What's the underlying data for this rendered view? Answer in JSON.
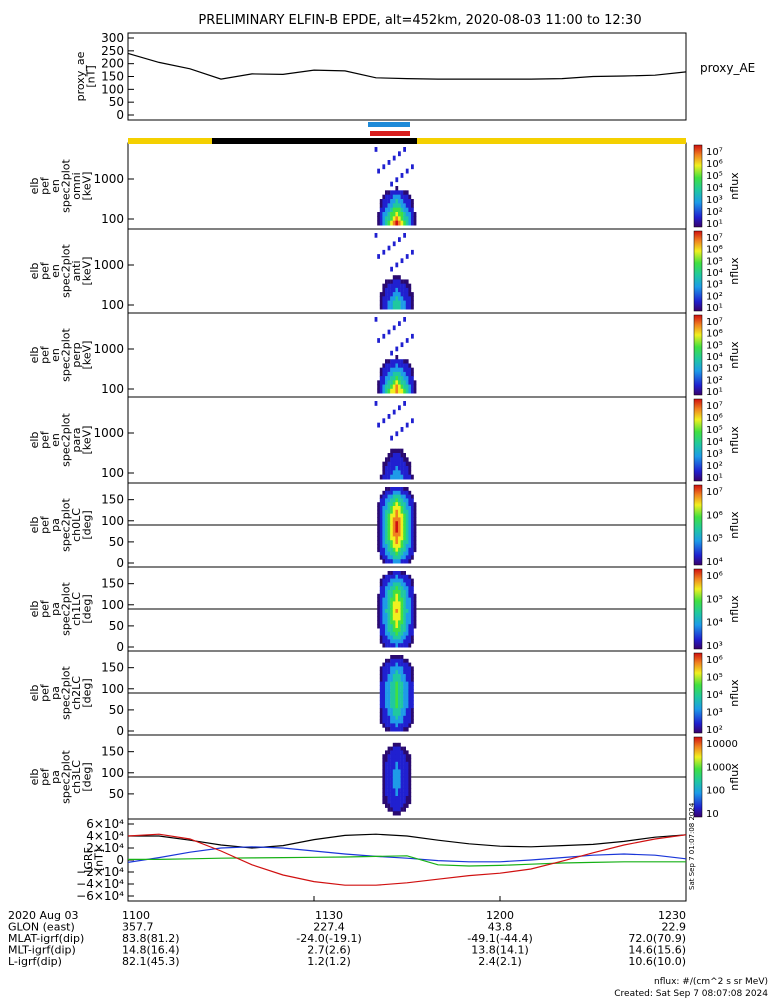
{
  "title": "PRELIMINARY ELFIN-B EPDE, alt=452km, 2020-08-03 11:00 to 12:30",
  "colors": {
    "bar_yellow": "#f4d000",
    "bar_black": "#000000",
    "ind_blue": "#1e8ad8",
    "ind_red": "#d81e1e",
    "grf_black": "#000000",
    "grf_blue": "#1a36d8",
    "grf_green": "#16b016",
    "grf_red": "#d01010"
  },
  "colorbar_ticks_text": {
    "p0": [
      "10⁷",
      "10⁶",
      "10⁵",
      "10⁴",
      "10³",
      "10²",
      "10¹"
    ],
    "p4": [
      "10⁷",
      "10⁶",
      "10⁵",
      "10⁴"
    ],
    "p5": [
      "10⁶",
      "10⁵",
      "10⁴",
      "10³"
    ],
    "p6": [
      "10⁶",
      "10⁵",
      "10⁴",
      "10³",
      "10²"
    ],
    "p7": [
      "10000",
      "1000",
      "100",
      "10"
    ]
  },
  "chart_data": {
    "type": "heatmap",
    "x_range": [
      "11:00",
      "12:30"
    ],
    "panels": [
      {
        "id": "proxy_ae",
        "type": "line",
        "label": "proxy_AE",
        "ylabel_lines": [
          "proxy_ae",
          "[nT]"
        ],
        "yticks": [
          "300",
          "250",
          "200",
          "150",
          "100",
          "50",
          "0"
        ],
        "ylim": [
          0,
          300
        ],
        "x_minutes": [
          0,
          5,
          10,
          15,
          20,
          25,
          30,
          35,
          40,
          45,
          50,
          55,
          60,
          65,
          70,
          75,
          80,
          85,
          90
        ],
        "values": [
          240,
          205,
          180,
          140,
          160,
          158,
          175,
          172,
          145,
          142,
          140,
          140,
          140,
          140,
          142,
          150,
          152,
          155,
          168
        ]
      },
      {
        "id": "en_omni",
        "ylabel_lines": [
          "elb",
          "pef",
          "en",
          "spec2plot",
          "omni",
          "[keV]"
        ],
        "yticks": [
          "1000",
          "100"
        ],
        "cbar": "p0"
      },
      {
        "id": "en_anti",
        "ylabel_lines": [
          "elb",
          "pef",
          "en",
          "spec2plot",
          "anti",
          "[keV]"
        ],
        "yticks": [
          "1000",
          "100"
        ],
        "cbar": "p0"
      },
      {
        "id": "en_perp",
        "ylabel_lines": [
          "elb",
          "pef",
          "en",
          "spec2plot",
          "perp",
          "[keV]"
        ],
        "yticks": [
          "1000",
          "100"
        ],
        "cbar": "p0"
      },
      {
        "id": "en_para",
        "ylabel_lines": [
          "elb",
          "pef",
          "en",
          "spec2plot",
          "para",
          "[keV]"
        ],
        "yticks": [
          "1000",
          "100"
        ],
        "cbar": "p0"
      },
      {
        "id": "pa_ch0",
        "ylabel_lines": [
          "elb",
          "pef",
          "pa",
          "spec2plot",
          "ch0LC",
          "[deg]"
        ],
        "yticks": [
          "150",
          "100",
          "50",
          "0"
        ],
        "cbar": "p4"
      },
      {
        "id": "pa_ch1",
        "ylabel_lines": [
          "elb",
          "pef",
          "pa",
          "spec2plot",
          "ch1LC",
          "[deg]"
        ],
        "yticks": [
          "150",
          "100",
          "50",
          "0"
        ],
        "cbar": "p5"
      },
      {
        "id": "pa_ch2",
        "ylabel_lines": [
          "elb",
          "pef",
          "pa",
          "spec2plot",
          "ch2LC",
          "[deg]"
        ],
        "yticks": [
          "150",
          "100",
          "50",
          "0"
        ],
        "cbar": "p6"
      },
      {
        "id": "pa_ch3",
        "ylabel_lines": [
          "elb",
          "pef",
          "pa",
          "spec2plot",
          "ch3LC",
          "[deg]"
        ],
        "yticks": [
          "150",
          "100",
          "50"
        ],
        "cbar": "p7"
      },
      {
        "id": "igrf",
        "type": "line",
        "ylabel_lines": [
          "IGRF",
          "[nT]"
        ],
        "yticks": [
          "6×10⁴",
          "4×10⁴",
          "2×10⁴",
          "0",
          "−2×10⁴",
          "−4×10⁴",
          "−6×10⁴"
        ],
        "ylim": [
          -60000,
          60000
        ],
        "x_minutes": [
          0,
          5,
          10,
          15,
          20,
          25,
          30,
          35,
          40,
          45,
          50,
          55,
          60,
          65,
          70,
          75,
          80,
          85,
          90
        ],
        "series": [
          {
            "color_key": "grf_black",
            "values": [
              40000,
              40000,
              33000,
              25000,
              20000,
              24000,
              34000,
              41000,
              43000,
              40000,
              33000,
              27000,
              23000,
              22000,
              24000,
              26000,
              31000,
              38000,
              42000
            ]
          },
          {
            "color_key": "grf_blue",
            "values": [
              -4000,
              4000,
              13000,
              20000,
              22000,
              20000,
              15000,
              10000,
              6000,
              3000,
              -1000,
              -3000,
              -3000,
              0,
              4000,
              8000,
              10000,
              8000,
              2000
            ]
          },
          {
            "color_key": "grf_green",
            "values": [
              1000,
              1000,
              2000,
              3000,
              3500,
              4000,
              4500,
              5000,
              6000,
              7000,
              -8000,
              -10000,
              -9000,
              -7000,
              -5000,
              -4000,
              -3000,
              -3000,
              -3000
            ]
          },
          {
            "color_key": "grf_red",
            "values": [
              40000,
              43000,
              35000,
              15000,
              -8000,
              -25000,
              -36000,
              -42000,
              -42000,
              -38000,
              -32000,
              -26000,
              -22000,
              -15000,
              -2000,
              12000,
              25000,
              35000,
              42000
            ]
          }
        ]
      }
    ],
    "heatmap_blobs_note": "flux enhancement concentrated around 11:40-11:48"
  },
  "ephemeris": {
    "rows": [
      {
        "label": "2020 Aug 03",
        "values": [
          "1100",
          "1130",
          "1200",
          "1230"
        ]
      },
      {
        "label": "GLON (east)",
        "values": [
          "357.7",
          "227.4",
          "43.8",
          "22.9"
        ]
      },
      {
        "label": "MLAT-igrf(dip)",
        "values": [
          "83.8(81.2)",
          "-24.0(-19.1)",
          "-49.1(-44.4)",
          "72.0(70.9)"
        ]
      },
      {
        "label": "MLT-igrf(dip)",
        "values": [
          "14.8(16.4)",
          "2.7(2.6)",
          "13.8(14.1)",
          "14.6(15.6)"
        ]
      },
      {
        "label": "L-igrf(dip)",
        "values": [
          "82.1(45.3)",
          "1.2(1.2)",
          "2.4(2.1)",
          "10.6(10.0)"
        ]
      }
    ]
  },
  "footer": {
    "units": "nflux: #/(cm^2 s sr MeV)",
    "created": "Created: Sat Sep  7 08:07:08 2024",
    "side_stamp": "Sat Sep  7 01:07:08 2024"
  }
}
